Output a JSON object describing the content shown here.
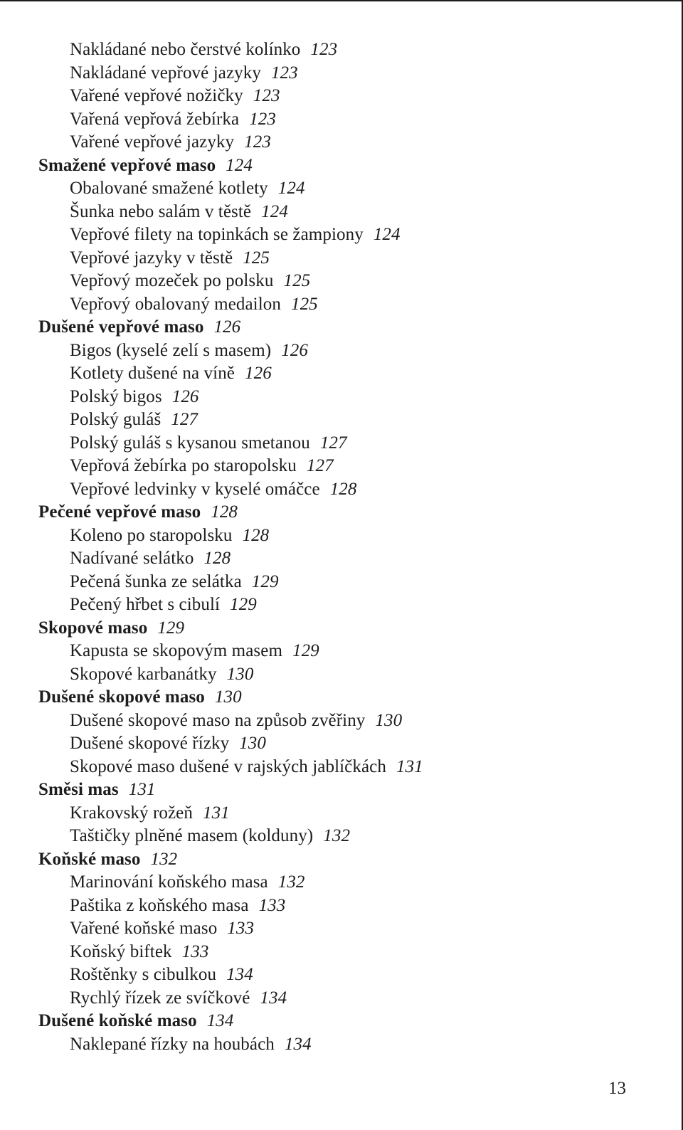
{
  "entries": [
    {
      "title": "Nakládané nebo čerstvé kolínko",
      "page": "123",
      "level": 1,
      "bold": false
    },
    {
      "title": "Nakládané vepřové jazyky",
      "page": "123",
      "level": 1,
      "bold": false
    },
    {
      "title": "Vařené vepřové nožičky",
      "page": "123",
      "level": 1,
      "bold": false
    },
    {
      "title": "Vařená vepřová žebírka",
      "page": "123",
      "level": 1,
      "bold": false
    },
    {
      "title": "Vařené vepřové jazyky",
      "page": "123",
      "level": 1,
      "bold": false
    },
    {
      "title": "Smažené vepřové maso",
      "page": "124",
      "level": 0,
      "bold": true
    },
    {
      "title": "Obalované smažené kotlety",
      "page": "124",
      "level": 1,
      "bold": false
    },
    {
      "title": "Šunka nebo salám v těstě",
      "page": "124",
      "level": 1,
      "bold": false
    },
    {
      "title": "Vepřové filety na topinkách se žampiony",
      "page": "124",
      "level": 1,
      "bold": false
    },
    {
      "title": "Vepřové jazyky v těstě",
      "page": "125",
      "level": 1,
      "bold": false
    },
    {
      "title": "Vepřový mozeček po polsku",
      "page": "125",
      "level": 1,
      "bold": false
    },
    {
      "title": "Vepřový obalovaný medailon",
      "page": "125",
      "level": 1,
      "bold": false
    },
    {
      "title": "Dušené vepřové maso",
      "page": "126",
      "level": 0,
      "bold": true
    },
    {
      "title": "Bigos (kyselé zelí s masem)",
      "page": "126",
      "level": 1,
      "bold": false
    },
    {
      "title": "Kotlety dušené na víně",
      "page": "126",
      "level": 1,
      "bold": false
    },
    {
      "title": "Polský bigos",
      "page": "126",
      "level": 1,
      "bold": false
    },
    {
      "title": "Polský guláš",
      "page": "127",
      "level": 1,
      "bold": false
    },
    {
      "title": "Polský guláš s kysanou smetanou",
      "page": "127",
      "level": 1,
      "bold": false
    },
    {
      "title": "Vepřová žebírka po staropolsku",
      "page": "127",
      "level": 1,
      "bold": false
    },
    {
      "title": "Vepřové ledvinky v kyselé omáčce",
      "page": "128",
      "level": 1,
      "bold": false
    },
    {
      "title": "Pečené vepřové maso",
      "page": "128",
      "level": 0,
      "bold": true
    },
    {
      "title": "Koleno po staropolsku",
      "page": "128",
      "level": 1,
      "bold": false
    },
    {
      "title": "Nadívané selátko",
      "page": "128",
      "level": 1,
      "bold": false
    },
    {
      "title": "Pečená šunka ze selátka",
      "page": "129",
      "level": 1,
      "bold": false
    },
    {
      "title": "Pečený hřbet s cibulí",
      "page": "129",
      "level": 1,
      "bold": false
    },
    {
      "title": "Skopové maso",
      "page": "129",
      "level": 0,
      "bold": true
    },
    {
      "title": "Kapusta se skopovým masem",
      "page": "129",
      "level": 1,
      "bold": false
    },
    {
      "title": "Skopové karbanátky",
      "page": "130",
      "level": 1,
      "bold": false
    },
    {
      "title": "Dušené skopové maso",
      "page": "130",
      "level": 0,
      "bold": true
    },
    {
      "title": "Dušené skopové maso na způsob zvěřiny",
      "page": "130",
      "level": 1,
      "bold": false
    },
    {
      "title": "Dušené skopové řízky",
      "page": "130",
      "level": 1,
      "bold": false
    },
    {
      "title": "Skopové maso dušené v rajských jablíčkách",
      "page": "131",
      "level": 1,
      "bold": false
    },
    {
      "title": "Směsi mas",
      "page": "131",
      "level": 0,
      "bold": true
    },
    {
      "title": "Krakovský rožeň",
      "page": "131",
      "level": 1,
      "bold": false
    },
    {
      "title": "Taštičky plněné masem (kolduny)",
      "page": "132",
      "level": 1,
      "bold": false
    },
    {
      "title": "Koňské maso",
      "page": "132",
      "level": 0,
      "bold": true
    },
    {
      "title": "Marinování koňského masa",
      "page": "132",
      "level": 1,
      "bold": false
    },
    {
      "title": "Paštika z koňského masa",
      "page": "133",
      "level": 1,
      "bold": false
    },
    {
      "title": "Vařené koňské maso",
      "page": "133",
      "level": 1,
      "bold": false
    },
    {
      "title": "Koňský biftek",
      "page": "133",
      "level": 1,
      "bold": false
    },
    {
      "title": "Roštěnky s cibulkou",
      "page": "134",
      "level": 1,
      "bold": false
    },
    {
      "title": "Rychlý řízek ze svíčkové",
      "page": "134",
      "level": 1,
      "bold": false
    },
    {
      "title": "Dušené koňské maso",
      "page": "134",
      "level": 0,
      "bold": true
    },
    {
      "title": "Naklepané řízky na houbách",
      "page": "134",
      "level": 1,
      "bold": false
    }
  ],
  "pageNumber": "13"
}
